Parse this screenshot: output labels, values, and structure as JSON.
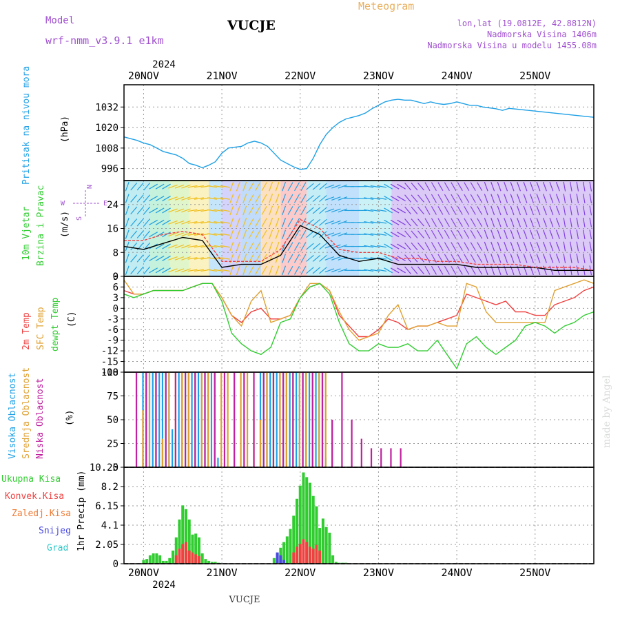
{
  "header": {
    "model_label": "Model",
    "model_value": "wrf-nmm_v3.9.1 e1km",
    "station": "VUCJE",
    "product": "Meteogram",
    "lonlat": "lon,lat (19.0812E, 42.8812N)",
    "altitude": "Nadmorska Visina 1406m",
    "model_altitude": "Nadmorska Visina u modelu 1455.08m",
    "signature": "made by Angel",
    "footer_station": "VUCJE"
  },
  "colors": {
    "pressure": "#1ea0e6",
    "temp2m": "#f04040",
    "sfc": "#e0a030",
    "dewpt": "#30cc30",
    "cloud_high": "#1ea0e6",
    "cloud_mid": "#e0a030",
    "cloud_low": "#c020a0",
    "rain_total": "#30cc30",
    "rain_conv": "#f04040",
    "rain_frz": "#f07830",
    "snow": "#4848e0",
    "grad": "#30c8c8",
    "model_text": "#a050d0",
    "meteogram_text": "#e8b060",
    "wind_speed_line": "#000000",
    "wind_gust_line": "#f04040"
  },
  "time_axis": {
    "top_year": "2024",
    "bottom_year": "2024",
    "days": [
      "20NOV",
      "21NOV",
      "22NOV",
      "23NOV",
      "24NOV",
      "25NOV"
    ],
    "start_hour_offset": -6,
    "end_hour_offset": 138
  },
  "chart_data": [
    {
      "type": "line",
      "panel": "pressure",
      "ylabel_colored": "Pritisak na nivou mora",
      "unit": "(hPa)",
      "yticks": [
        "1032",
        "1020",
        "1008",
        "996"
      ],
      "ylim": [
        989,
        1045
      ],
      "series": [
        {
          "x": [
            -6,
            -4,
            -2,
            0,
            2,
            4,
            6,
            8,
            10,
            12,
            14,
            16,
            18,
            20,
            22,
            24,
            26,
            28,
            30,
            32,
            34,
            36,
            38,
            40,
            42,
            44,
            46,
            48,
            50,
            52,
            54,
            56,
            58,
            60,
            62,
            64,
            66,
            68,
            70,
            72,
            74,
            76,
            78,
            80,
            82,
            84,
            86,
            88,
            90,
            92,
            94,
            96,
            98,
            100,
            102,
            104,
            106,
            108,
            110,
            112,
            114,
            116,
            118,
            120,
            122,
            124,
            126,
            128,
            130,
            132,
            134,
            136,
            138
          ],
          "y": [
            1014.5,
            1013.5,
            1012.5,
            1011,
            1010,
            1008,
            1006,
            1005,
            1004,
            1002,
            999,
            998,
            996.5,
            998,
            1000,
            1005,
            1008,
            1008.5,
            1009,
            1011,
            1012,
            1011,
            1009,
            1005,
            1001,
            999,
            997,
            995.5,
            996,
            1002,
            1010,
            1016,
            1020,
            1023,
            1025,
            1026,
            1027,
            1028.5,
            1031,
            1033,
            1035,
            1036,
            1036.5,
            1036,
            1036,
            1035,
            1034,
            1035,
            1034,
            1033.5,
            1034,
            1035,
            1034,
            1033,
            1033,
            1032,
            1031.5,
            1031,
            1030,
            1031.2,
            1030.8,
            1030.4,
            1030,
            1029.6,
            1029.2,
            1028.8,
            1028.4,
            1028,
            1027.6,
            1027.2,
            1026.8,
            1026.4,
            1026
          ]
        }
      ]
    },
    {
      "type": "line",
      "panel": "wind",
      "ylabel_colored": [
        "10m Vjetar",
        "Brzina i Pravac"
      ],
      "unit": "(m/s)",
      "compass": {
        "n": "N",
        "e": "E",
        "w": "W",
        "s": "S"
      },
      "yticks": [
        "24",
        "16",
        "8",
        "0"
      ],
      "ylim": [
        0,
        32
      ],
      "series": [
        {
          "name": "speed",
          "x": [
            -6,
            0,
            6,
            12,
            18,
            24,
            30,
            36,
            42,
            48,
            54,
            60,
            66,
            72,
            78,
            84,
            90,
            96,
            102,
            108,
            114,
            120,
            126,
            132,
            138
          ],
          "y": [
            10,
            9,
            11,
            13,
            12,
            3,
            4,
            4,
            7,
            17,
            14,
            7,
            5,
            6,
            4,
            4,
            4,
            4,
            3,
            3,
            3,
            3,
            2,
            2,
            2
          ]
        },
        {
          "name": "gust",
          "x": [
            -6,
            0,
            6,
            12,
            18,
            24,
            30,
            36,
            42,
            48,
            54,
            60,
            66,
            72,
            78,
            84,
            90,
            96,
            102,
            108,
            114,
            120,
            126,
            132,
            138
          ],
          "y": [
            12,
            12,
            14,
            15,
            14,
            5,
            5,
            5,
            9,
            19,
            16,
            9,
            8,
            8,
            6,
            6,
            5,
            5,
            4,
            4,
            4,
            3,
            3,
            3,
            2
          ]
        }
      ],
      "direction_deg": [
        200,
        220,
        240,
        250,
        260,
        280,
        20,
        30,
        200,
        210,
        230,
        250,
        270,
        280,
        300,
        320,
        330,
        330,
        330,
        340,
        340,
        340,
        340,
        350,
        350
      ]
    },
    {
      "type": "line",
      "panel": "temperature",
      "ylabel_colored": [
        "2m Temp",
        "SFC Temp",
        "dewpt Temp"
      ],
      "unit": "(C)",
      "yticks": [
        "9",
        "6",
        "3",
        "0",
        "-3",
        "-6",
        "-9",
        "-12",
        "-15",
        "-18"
      ],
      "ylim": [
        -18,
        9
      ],
      "series": [
        {
          "name": "2m",
          "x": [
            -6,
            -3,
            0,
            3,
            6,
            9,
            12,
            15,
            18,
            21,
            24,
            27,
            30,
            33,
            36,
            39,
            42,
            45,
            48,
            51,
            54,
            57,
            60,
            63,
            66,
            69,
            72,
            75,
            78,
            81,
            84,
            87,
            90,
            93,
            96,
            99,
            102,
            105,
            108,
            111,
            114,
            117,
            120,
            123,
            126,
            129,
            132,
            135,
            138
          ],
          "y": [
            5,
            4,
            4,
            5,
            5,
            5,
            5,
            6,
            7,
            7,
            3,
            -2,
            -4,
            -1,
            0,
            -3,
            -3,
            -2,
            3,
            6,
            7,
            5,
            -2,
            -5,
            -8,
            -8,
            -6,
            -3,
            -4,
            -6,
            -5,
            -5,
            -4,
            -3,
            -2,
            4,
            3,
            2,
            1,
            2,
            -1,
            -1,
            -2,
            -2,
            1,
            2,
            3,
            5,
            6
          ]
        },
        {
          "name": "sfc",
          "x": [
            -6,
            -3,
            0,
            3,
            6,
            9,
            12,
            15,
            18,
            21,
            24,
            27,
            30,
            33,
            36,
            39,
            42,
            45,
            48,
            51,
            54,
            57,
            60,
            63,
            66,
            69,
            72,
            75,
            78,
            81,
            84,
            87,
            90,
            93,
            96,
            99,
            102,
            105,
            108,
            111,
            114,
            117,
            120,
            123,
            126,
            129,
            132,
            135,
            138
          ],
          "y": [
            8,
            4,
            4,
            5,
            5,
            5,
            5,
            6,
            7,
            7,
            3,
            -2,
            -5,
            2,
            5,
            -4,
            -3,
            -2,
            3,
            7,
            7,
            5,
            -1,
            -6,
            -9,
            -8,
            -7,
            -2,
            1,
            -6,
            -5,
            -5,
            -4,
            -5,
            -5,
            7,
            6,
            -1,
            -4,
            -4,
            -4,
            -4,
            -4,
            -4,
            5,
            6,
            7,
            8,
            7
          ]
        },
        {
          "name": "dewpt",
          "x": [
            -6,
            -3,
            0,
            3,
            6,
            9,
            12,
            15,
            18,
            21,
            24,
            27,
            30,
            33,
            36,
            39,
            42,
            45,
            48,
            51,
            54,
            57,
            60,
            63,
            66,
            69,
            72,
            75,
            78,
            81,
            84,
            87,
            90,
            93,
            96,
            99,
            102,
            105,
            108,
            111,
            114,
            117,
            120,
            123,
            126,
            129,
            132,
            135,
            138
          ],
          "y": [
            4,
            3,
            4,
            5,
            5,
            5,
            5,
            6,
            7,
            7,
            2,
            -7,
            -10,
            -12,
            -13,
            -11,
            -4,
            -3,
            3,
            6,
            7,
            4,
            -4,
            -10,
            -12,
            -12,
            -10,
            -11,
            -11,
            -10,
            -12,
            -12,
            -9,
            -13,
            -17,
            -10,
            -8,
            -11,
            -13,
            -11,
            -9,
            -5,
            -4,
            -5,
            -7,
            -5,
            -4,
            -2,
            -1
          ]
        }
      ]
    },
    {
      "type": "bar",
      "panel": "clouds",
      "ylabel_colored": [
        "Visoka Oblacnost",
        "Srednja Oblacnost",
        "Niska Oblacnost"
      ],
      "unit": "(%)",
      "yticks": [
        "100",
        "75",
        "50",
        "25",
        "0"
      ],
      "ylim": [
        0,
        100
      ],
      "series": [
        {
          "name": "high",
          "x": [
            0,
            1,
            2,
            3,
            4,
            5,
            6,
            7,
            8,
            9,
            10,
            11,
            12,
            13,
            14,
            15,
            16,
            17,
            18,
            19,
            20,
            21,
            22,
            23,
            36,
            37,
            38,
            39,
            40,
            41,
            42,
            43,
            44,
            45,
            46,
            47,
            48,
            49,
            50,
            51,
            52,
            53,
            54,
            55,
            56
          ],
          "y": [
            100,
            100,
            100,
            100,
            100,
            100,
            100,
            100,
            100,
            40,
            30,
            100,
            100,
            100,
            100,
            100,
            100,
            100,
            100,
            100,
            100,
            100,
            100,
            10,
            100,
            100,
            100,
            100,
            100,
            100,
            100,
            100,
            100,
            100,
            100,
            100,
            100,
            100,
            100,
            100,
            100,
            100,
            100,
            100,
            10
          ]
        },
        {
          "name": "mid",
          "x": [
            0,
            2,
            4,
            6,
            8,
            10,
            12,
            14,
            16,
            18,
            20,
            22,
            24,
            26,
            28,
            30,
            32,
            34,
            36,
            38,
            40,
            42,
            44,
            46,
            48,
            50,
            52,
            54,
            56,
            58
          ],
          "y": [
            60,
            100,
            100,
            30,
            100,
            100,
            100,
            100,
            100,
            100,
            100,
            100,
            100,
            100,
            100,
            100,
            100,
            60,
            50,
            100,
            100,
            100,
            100,
            100,
            100,
            100,
            100,
            100,
            100,
            50
          ]
        },
        {
          "name": "low",
          "x": [
            -2,
            1,
            4,
            7,
            10,
            13,
            16,
            19,
            22,
            25,
            28,
            31,
            34,
            37,
            40,
            43,
            46,
            49,
            52,
            55,
            58,
            61,
            64,
            67,
            70,
            73,
            76,
            79,
            82,
            85,
            88,
            91,
            94,
            97,
            100,
            103,
            106,
            109,
            112,
            115,
            118,
            121,
            124,
            127,
            130,
            133,
            136
          ],
          "y": [
            100,
            100,
            100,
            100,
            100,
            100,
            100,
            100,
            100,
            100,
            100,
            100,
            100,
            100,
            100,
            100,
            100,
            100,
            100,
            100,
            50,
            100,
            50,
            30,
            20,
            20,
            20,
            20,
            0,
            0,
            0,
            0,
            0,
            0,
            0,
            0,
            0,
            0,
            0,
            0,
            0,
            0,
            0,
            0,
            0,
            0,
            0
          ]
        }
      ]
    },
    {
      "type": "bar",
      "panel": "precip",
      "ylabel": "1hr Precip (mm)",
      "legend": [
        "Ukupna Kisa",
        "Konvek.Kisa",
        "Zaledj.Kisa",
        "Snijeg",
        "Grad"
      ],
      "yticks": [
        "10.25",
        "8.2",
        "6.15",
        "4.1",
        "2.05",
        "0"
      ],
      "ylim": [
        0,
        10.25
      ],
      "series": [
        {
          "name": "total",
          "x": [
            0,
            1,
            2,
            3,
            4,
            5,
            6,
            7,
            8,
            9,
            10,
            11,
            12,
            13,
            14,
            15,
            16,
            17,
            18,
            19,
            20,
            21,
            22,
            23,
            40,
            41,
            42,
            43,
            44,
            45,
            46,
            47,
            48,
            49,
            50,
            51,
            52,
            53,
            54,
            55,
            56,
            57,
            58,
            59,
            60,
            61,
            62
          ],
          "y": [
            0.4,
            0.5,
            0.9,
            1.1,
            1.1,
            0.9,
            0.3,
            0.3,
            0.6,
            1.4,
            2.8,
            4.7,
            6.2,
            5.8,
            4.7,
            3.1,
            3.2,
            2.8,
            1.1,
            0.5,
            0.3,
            0.2,
            0.2,
            0.1,
            0.6,
            1.1,
            1.7,
            2.3,
            2.9,
            3.7,
            5.1,
            6.9,
            8.3,
            9.7,
            9.2,
            8.6,
            7.2,
            6.1,
            3.8,
            4.8,
            3.9,
            3.3,
            0.9,
            0.2,
            0.1,
            0.1,
            0.1
          ]
        },
        {
          "name": "conv",
          "x": [
            10,
            11,
            12,
            13,
            14,
            15,
            16,
            17,
            46,
            47,
            48,
            49,
            50,
            51,
            52,
            53,
            54
          ],
          "y": [
            0.9,
            1.6,
            2.1,
            2.3,
            1.4,
            1.2,
            1.0,
            0.8,
            1.2,
            1.8,
            2.1,
            2.6,
            2.3,
            1.8,
            1.6,
            2.0,
            1.4
          ]
        },
        {
          "name": "snow",
          "x": [
            41,
            42,
            43
          ],
          "y": [
            1.2,
            0.9,
            0.4
          ]
        }
      ]
    }
  ]
}
